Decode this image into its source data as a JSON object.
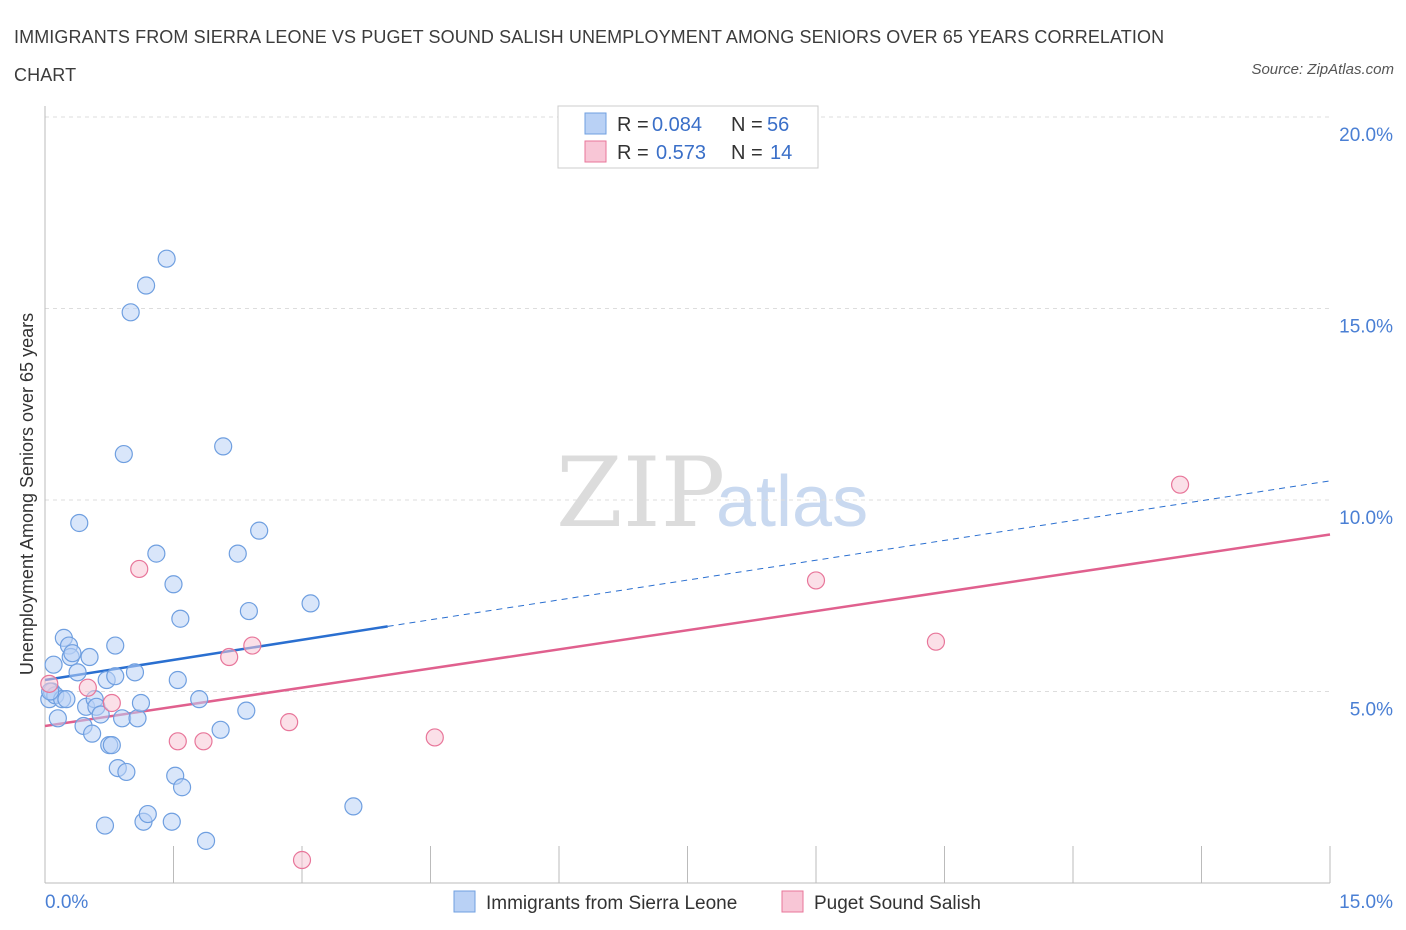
{
  "title": "IMMIGRANTS FROM SIERRA LEONE VS PUGET SOUND SALISH UNEMPLOYMENT AMONG SENIORS OVER 65 YEARS CORRELATION CHART",
  "source": "Source: ZipAtlas.com",
  "watermark": {
    "zip": "ZIP",
    "atlas": "atlas"
  },
  "colors": {
    "blue": "#6f9fe0",
    "blue_fill": "#b9d1f5",
    "blue_line": "#2a6fd0",
    "pink": "#e8769a",
    "pink_fill": "#f8c6d6",
    "pink_line": "#e0608e",
    "axis_text": "#4a7fd4",
    "grid": "#dddddd"
  },
  "legend": {
    "rows": [
      {
        "r_label": "R =",
        "r_value": "0.084",
        "n_label": "N =",
        "n_value": "56"
      },
      {
        "r_label": "R =",
        "r_value": "0.573",
        "n_label": "N =",
        "n_value": "14"
      }
    ]
  },
  "chart_data": {
    "type": "scatter",
    "title": "IMMIGRANTS FROM SIERRA LEONE VS PUGET SOUND SALISH UNEMPLOYMENT AMONG SENIORS OVER 65 YEARS CORRELATION CHART",
    "xlabel": "",
    "ylabel": "Unemployment Among Seniors over 65 years",
    "xlim": [
      0,
      15
    ],
    "ylim": [
      0,
      20
    ],
    "x_tick_labels": [
      "0.0%",
      "15.0%"
    ],
    "y_ticks": [
      5,
      10,
      15,
      20
    ],
    "y_tick_labels": [
      "5.0%",
      "10.0%",
      "15.0%",
      "20.0%"
    ],
    "series": [
      {
        "name": "Immigrants from Sierra Leone",
        "r": 0.084,
        "n": 56,
        "trend": {
          "x0": 0.0,
          "y0": 5.3,
          "x1": 4.0,
          "y1": 6.7,
          "dashed_to_x": 15.0,
          "dashed_to_y": 10.5
        },
        "points": [
          [
            0.05,
            4.8
          ],
          [
            0.08,
            5.0
          ],
          [
            0.1,
            5.7
          ],
          [
            0.12,
            4.9
          ],
          [
            0.15,
            4.3
          ],
          [
            0.2,
            4.8
          ],
          [
            0.22,
            6.4
          ],
          [
            0.25,
            4.8
          ],
          [
            0.28,
            6.2
          ],
          [
            0.3,
            5.9
          ],
          [
            0.32,
            6.0
          ],
          [
            0.38,
            5.5
          ],
          [
            0.4,
            9.4
          ],
          [
            0.45,
            4.1
          ],
          [
            0.48,
            4.6
          ],
          [
            0.52,
            5.9
          ],
          [
            0.55,
            3.9
          ],
          [
            0.58,
            4.8
          ],
          [
            0.6,
            4.6
          ],
          [
            0.65,
            4.4
          ],
          [
            0.7,
            1.5
          ],
          [
            0.72,
            5.3
          ],
          [
            0.75,
            3.6
          ],
          [
            0.78,
            3.6
          ],
          [
            0.82,
            6.2
          ],
          [
            0.82,
            5.4
          ],
          [
            0.85,
            3.0
          ],
          [
            0.9,
            4.3
          ],
          [
            0.92,
            11.2
          ],
          [
            0.95,
            2.9
          ],
          [
            1.0,
            14.9
          ],
          [
            1.05,
            5.5
          ],
          [
            1.08,
            4.3
          ],
          [
            1.12,
            4.7
          ],
          [
            1.15,
            1.6
          ],
          [
            1.18,
            15.6
          ],
          [
            1.2,
            1.8
          ],
          [
            1.3,
            8.6
          ],
          [
            1.42,
            16.3
          ],
          [
            1.48,
            1.6
          ],
          [
            1.5,
            7.8
          ],
          [
            1.52,
            2.8
          ],
          [
            1.55,
            5.3
          ],
          [
            1.58,
            6.9
          ],
          [
            1.6,
            2.5
          ],
          [
            1.8,
            4.8
          ],
          [
            1.88,
            1.1
          ],
          [
            2.05,
            4.0
          ],
          [
            2.08,
            11.4
          ],
          [
            2.25,
            8.6
          ],
          [
            2.35,
            4.5
          ],
          [
            2.38,
            7.1
          ],
          [
            2.5,
            9.2
          ],
          [
            3.1,
            7.3
          ],
          [
            3.6,
            2.0
          ],
          [
            0.06,
            5.0
          ]
        ]
      },
      {
        "name": "Puget Sound Salish",
        "r": 0.573,
        "n": 14,
        "trend": {
          "x0": 0.0,
          "y0": 4.1,
          "x1": 15.0,
          "y1": 9.1
        },
        "points": [
          [
            0.05,
            5.2
          ],
          [
            0.5,
            5.1
          ],
          [
            0.78,
            4.7
          ],
          [
            1.1,
            8.2
          ],
          [
            1.55,
            3.7
          ],
          [
            1.85,
            3.7
          ],
          [
            2.15,
            5.9
          ],
          [
            2.42,
            6.2
          ],
          [
            2.85,
            4.2
          ],
          [
            3.0,
            0.6
          ],
          [
            4.55,
            3.8
          ],
          [
            9.0,
            7.9
          ],
          [
            10.4,
            6.3
          ],
          [
            13.25,
            10.4
          ]
        ]
      }
    ]
  }
}
